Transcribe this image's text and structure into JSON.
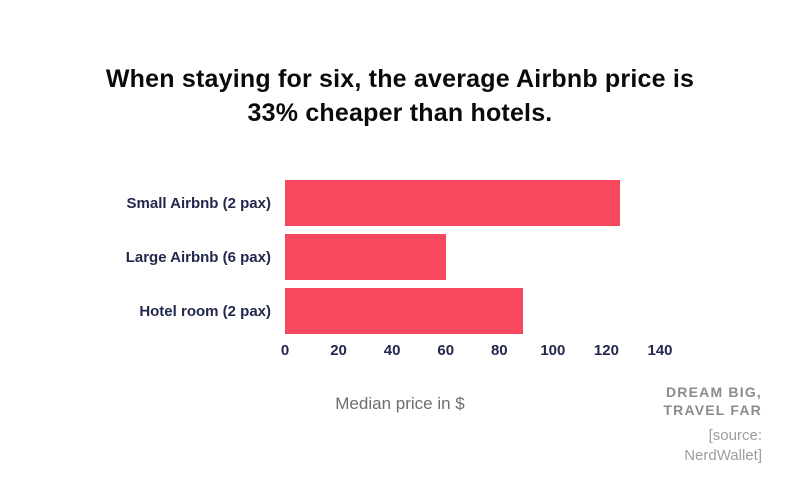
{
  "chart_data": {
    "type": "bar",
    "orientation": "horizontal",
    "title": "When staying for six, the average Airbnb price is 33% cheaper than hotels.",
    "categories": [
      "Small Airbnb (2 pax)",
      "Large Airbnb (6 pax)",
      "Hotel room (2 pax)"
    ],
    "values": [
      125,
      60,
      89
    ],
    "xlabel": "Median price in $",
    "xlim": [
      0,
      140
    ],
    "xticks": [
      0,
      20,
      40,
      60,
      80,
      100,
      120,
      140
    ],
    "bar_color": "#F8485E",
    "grid": false,
    "legend": false
  },
  "branding": {
    "logo_line1": "DREAM BIG,",
    "logo_line2": "TRAVEL FAR",
    "source_line1": "[source:",
    "source_line2": "NerdWallet]"
  },
  "colors": {
    "accent": "#F8485E",
    "category_label": "#23284D",
    "title_text": "#0A0A0A",
    "axis_label_gray": "#6E6E6E",
    "logo_gray": "#8B8B8B",
    "source_gray": "#9E9E9E"
  }
}
